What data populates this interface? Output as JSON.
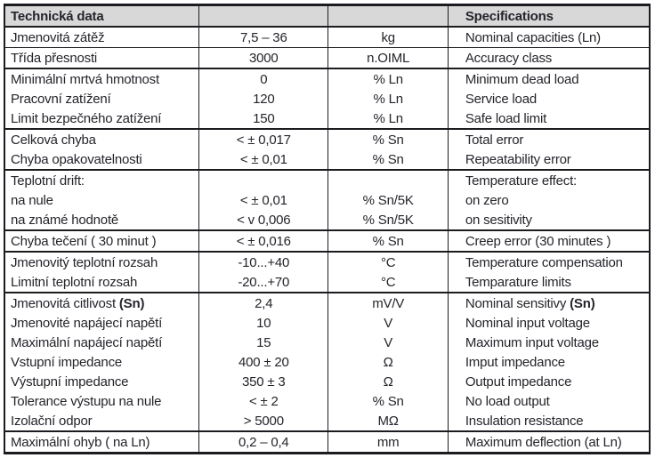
{
  "table": {
    "header": {
      "czech_title": "Technická data",
      "english_title": "Specifications"
    },
    "colors": {
      "header_background": "#d8d8d8",
      "border": "#1c1c20",
      "text": "#24242b",
      "page_background": "#ffffff"
    },
    "columns": [
      "czech-label",
      "value",
      "unit",
      "english-label"
    ],
    "rows": [
      {
        "cz": "Jmenovitá zátěž",
        "value": "7,5 – 36",
        "unit": "kg",
        "en": "Nominal capacities (Ln)",
        "sep": "thin"
      },
      {
        "cz": "Třída přesnosti",
        "value": "3000",
        "unit": "n.OIML",
        "en": "Accuracy class",
        "sep": "thick"
      },
      {
        "cz": "Minimální mrtvá hmotnost",
        "value": "0",
        "unit": "% Ln",
        "en": "Minimum dead load",
        "sep": "none"
      },
      {
        "cz": "Pracovní zatížení",
        "value": "120",
        "unit": "% Ln",
        "en": "Service load",
        "sep": "none"
      },
      {
        "cz": "Limit bezpečného zatížení",
        "value": "150",
        "unit": "% Ln",
        "en": "Safe load limit",
        "sep": "thick"
      },
      {
        "cz": "Celková chyba",
        "value": "< ± 0,017",
        "unit": "% Sn",
        "en": "Total error",
        "sep": "none"
      },
      {
        "cz": "Chyba opakovatelnosti",
        "value": "< ± 0,01",
        "unit": "% Sn",
        "en": "Repeatability error",
        "sep": "thick"
      },
      {
        "cz": "Teplotní drift:",
        "value": "",
        "unit": "",
        "en": "Temperature effect:",
        "sep": "none"
      },
      {
        "cz": "na nule",
        "value": "< ± 0,01",
        "unit": "% Sn/5K",
        "en": "on zero",
        "sep": "none"
      },
      {
        "cz": "na známé hodnotě",
        "value": "< v 0,006",
        "unit": "% Sn/5K",
        "en": "on sesitivity",
        "sep": "thick"
      },
      {
        "cz": "Chyba tečení ( 30 minut )",
        "value": "< ± 0,016",
        "unit": "% Sn",
        "en": "Creep error (30 minutes )",
        "sep": "thick"
      },
      {
        "cz": "Jmenovitý teplotní rozsah",
        "value": "-10...+40",
        "unit": "°C",
        "en": "Temperature compensation",
        "sep": "none"
      },
      {
        "cz": "Limitní teplotní rozsah",
        "value": "-20...+70",
        "unit": "°C",
        "en": "Temparature limits",
        "sep": "thick"
      },
      {
        "cz": "Jmenovitá citlivost ",
        "cz_b": "(Sn)",
        "value": "2,4",
        "unit": "mV/V",
        "en": "Nominal sensitivy ",
        "en_b": "(Sn)",
        "sep": "none"
      },
      {
        "cz": "Jmenovité napájecí napětí",
        "value": "10",
        "unit": "V",
        "en": "Nominal input voltage",
        "sep": "none"
      },
      {
        "cz": "Maximální napájecí napětí",
        "value": "15",
        "unit": "V",
        "en": "Maximum input voltage",
        "sep": "none"
      },
      {
        "cz": "Vstupní impedance",
        "value": "400 ± 20",
        "unit": "Ω",
        "en": "Imput impedance",
        "sep": "none"
      },
      {
        "cz": "Výstupní impedance",
        "value": "350 ± 3",
        "unit": "Ω",
        "en": "Output impedance",
        "sep": "none"
      },
      {
        "cz": "Tolerance výstupu na nule",
        "value": "< ± 2",
        "unit": "% Sn",
        "en": "No load output",
        "sep": "none"
      },
      {
        "cz": "Izolační odpor",
        "value": "> 5000",
        "unit": "MΩ",
        "en": "Insulation resistance",
        "sep": "thick"
      },
      {
        "cz": "Maximální ohyb ( na Ln)",
        "value": "0,2 – 0,4",
        "unit": "mm",
        "en": "Maximum deflection (at Ln)",
        "sep": "none"
      }
    ]
  }
}
